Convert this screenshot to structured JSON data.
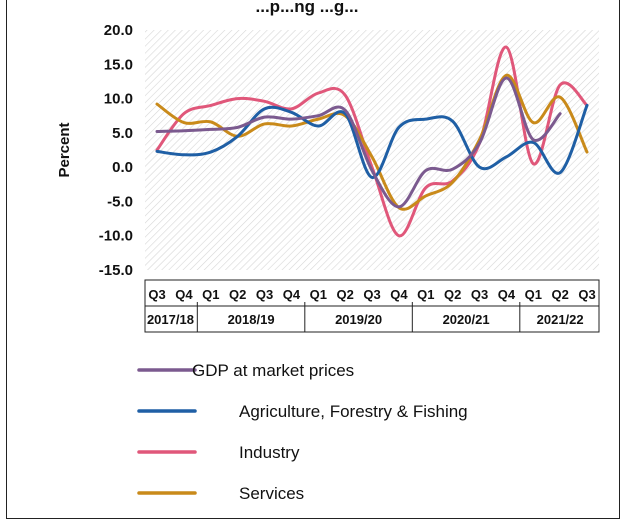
{
  "chart_data": {
    "type": "line",
    "title": "",
    "ylabel": "Percent",
    "xlabel": "",
    "ylim": [
      -15,
      20
    ],
    "yticks": [
      "20.0",
      "15.0",
      "10.0",
      "5.0",
      "0.0",
      "-5.0",
      "-10.0",
      "-15.0"
    ],
    "categories": [
      "Q3",
      "Q4",
      "Q1",
      "Q2",
      "Q3",
      "Q4",
      "Q1",
      "Q2",
      "Q3",
      "Q4",
      "Q1",
      "Q2",
      "Q3",
      "Q4",
      "Q1",
      "Q2",
      "Q3"
    ],
    "year_groups": [
      {
        "label": "2017/18",
        "start": 0,
        "end": 1
      },
      {
        "label": "2018/19",
        "start": 2,
        "end": 5
      },
      {
        "label": "2019/20",
        "start": 6,
        "end": 9
      },
      {
        "label": "2020/21",
        "start": 10,
        "end": 13
      },
      {
        "label": "2021/22",
        "start": 14,
        "end": 16
      }
    ],
    "grid": "hatched background",
    "legend_position": "bottom",
    "series": [
      {
        "name": "GDP at market prices",
        "color": "#7b5a8f",
        "values": [
          5.2,
          5.3,
          5.5,
          5.8,
          7.3,
          7.0,
          7.5,
          8.3,
          -0.5,
          -5.8,
          -0.5,
          -0.3,
          3.5,
          13.0,
          4.0,
          7.8,
          null
        ]
      },
      {
        "name": "Agriculture, Forestry & Fishing",
        "color": "#1f5fa5",
        "values": [
          2.3,
          1.8,
          2.2,
          4.5,
          8.5,
          8.0,
          6.0,
          7.8,
          -1.5,
          5.8,
          7.0,
          6.7,
          0.0,
          1.5,
          3.6,
          -0.8,
          9.0
        ]
      },
      {
        "name": "Industry",
        "color": "#e0577a",
        "values": [
          2.5,
          7.8,
          9.0,
          10.0,
          9.6,
          8.5,
          10.8,
          10.5,
          0.0,
          -10.0,
          -3.0,
          -2.0,
          3.5,
          17.5,
          0.5,
          12.0,
          9.0
        ]
      },
      {
        "name": "Services",
        "color": "#c98a1a",
        "values": [
          9.2,
          6.5,
          6.6,
          4.5,
          6.3,
          6.0,
          7.0,
          7.5,
          1.5,
          -5.9,
          -4.2,
          -2.2,
          4.0,
          13.4,
          6.5,
          10.2,
          2.2
        ]
      }
    ],
    "title_fragment": "...p...ng ...g..."
  }
}
